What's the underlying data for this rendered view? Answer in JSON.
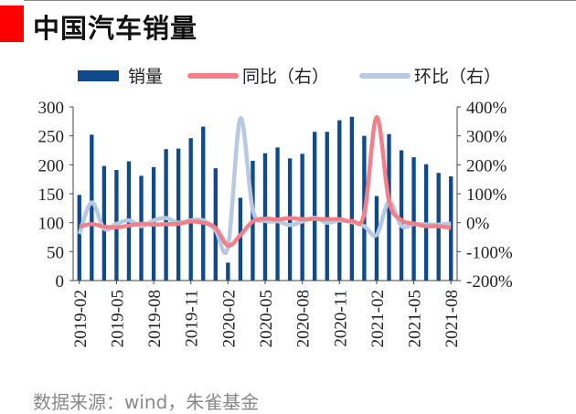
{
  "title": "中国汽车销量",
  "source": "数据来源：wind，朱雀基金",
  "colors": {
    "bar": "#0e4a8c",
    "yoy": "#f47f89",
    "mom": "#b6c8e2",
    "accent": "#ff0000"
  },
  "chart_data": {
    "type": "bar",
    "title": "中国汽车销量",
    "legend": [
      {
        "name": "销量",
        "kind": "bar"
      },
      {
        "name": "同比（右）",
        "kind": "line"
      },
      {
        "name": "环比（右）",
        "kind": "line"
      }
    ],
    "legend_position": "top",
    "x": [
      "2019-02",
      "2019-03",
      "2019-04",
      "2019-05",
      "2019-06",
      "2019-07",
      "2019-08",
      "2019-09",
      "2019-10",
      "2019-11",
      "2019-12",
      "2020-01",
      "2020-02",
      "2020-03",
      "2020-04",
      "2020-05",
      "2020-06",
      "2020-07",
      "2020-08",
      "2020-09",
      "2020-10",
      "2020-11",
      "2020-12",
      "2021-01",
      "2021-02",
      "2021-03",
      "2021-04",
      "2021-05",
      "2021-06",
      "2021-07",
      "2021-08"
    ],
    "x_tick_labels": [
      "2019-02",
      "2019-05",
      "2019-08",
      "2019-11",
      "2020-02",
      "2020-05",
      "2020-08",
      "2020-11",
      "2021-02",
      "2021-05",
      "2021-08"
    ],
    "series": [
      {
        "name": "销量",
        "axis": "left",
        "values": [
          148,
          252,
          198,
          191,
          206,
          181,
          196,
          227,
          228,
          246,
          266,
          194,
          31,
          143,
          207,
          220,
          230,
          211,
          219,
          257,
          257,
          277,
          283,
          250,
          146,
          253,
          225,
          213,
          201,
          186,
          180
        ]
      },
      {
        "name": "同比（右）",
        "axis": "right",
        "values": [
          -14,
          -5,
          -14,
          -16,
          -10,
          -4,
          -7,
          -5,
          -4,
          4,
          0,
          -18,
          -79,
          -43,
          4,
          14,
          11,
          16,
          12,
          13,
          12,
          12,
          6,
          30,
          364,
          75,
          9,
          -3,
          -12,
          -12,
          -18
        ]
      },
      {
        "name": "环比（右）",
        "axis": "right",
        "values": [
          -39,
          70,
          -21,
          -4,
          8,
          -12,
          8,
          16,
          0,
          8,
          8,
          -27,
          -84,
          360,
          45,
          6,
          5,
          -8,
          4,
          17,
          0,
          8,
          2,
          -12,
          -42,
          73,
          -11,
          -5,
          -6,
          -7,
          -3
        ]
      }
    ],
    "y_left": {
      "min": 0,
      "max": 300,
      "ticks": [
        0,
        50,
        100,
        150,
        200,
        250,
        300
      ]
    },
    "y_right": {
      "min": -200,
      "max": 400,
      "ticks": [
        "-200%",
        "-100%",
        "0%",
        "100%",
        "200%",
        "300%",
        "400%"
      ],
      "tick_values": [
        -200,
        -100,
        0,
        100,
        200,
        300,
        400
      ]
    },
    "grid": false
  }
}
